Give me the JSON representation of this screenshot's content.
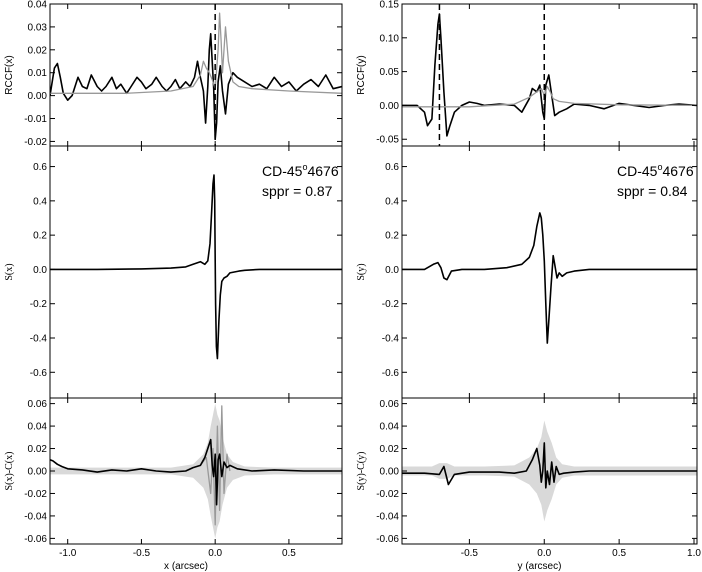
{
  "chart_data": [
    {
      "id": "rccf-x",
      "type": "line",
      "ylabel": "RCCF(x)",
      "xlim": [
        -1.12,
        0.86
      ],
      "ylim": [
        -0.022,
        0.04
      ],
      "yticks": [
        -0.02,
        -0.01,
        0.0,
        0.01,
        0.02,
        0.03,
        0.04
      ],
      "ytick_labels": [
        "-0.02",
        "-0.01",
        "0.00",
        "0.01",
        "0.02",
        "0.03",
        "0.04"
      ],
      "xticks": [
        -1.0,
        -0.5,
        0.0,
        0.5
      ],
      "vlines": [
        0.0
      ],
      "series": [
        {
          "color": "#000000",
          "x": [
            -1.12,
            -1.09,
            -1.07,
            -1.05,
            -1.03,
            -1.0,
            -0.97,
            -0.93,
            -0.9,
            -0.87,
            -0.84,
            -0.8,
            -0.77,
            -0.74,
            -0.7,
            -0.67,
            -0.64,
            -0.6,
            -0.57,
            -0.53,
            -0.5,
            -0.47,
            -0.43,
            -0.4,
            -0.36,
            -0.33,
            -0.3,
            -0.27,
            -0.24,
            -0.2,
            -0.17,
            -0.14,
            -0.12,
            -0.1,
            -0.08,
            -0.065,
            -0.05,
            -0.04,
            -0.03,
            -0.02,
            -0.01,
            0.0,
            0.01,
            0.02,
            0.035,
            0.05,
            0.07,
            0.09,
            0.12,
            0.15,
            0.2,
            0.25,
            0.3,
            0.35,
            0.4,
            0.45,
            0.5,
            0.55,
            0.6,
            0.65,
            0.7,
            0.75,
            0.8,
            0.86
          ],
          "y": [
            0.0,
            0.012,
            0.014,
            0.008,
            0.001,
            -0.002,
            0.0,
            0.008,
            0.004,
            0.003,
            0.009,
            0.004,
            0.002,
            0.004,
            0.008,
            0.003,
            0.005,
            0.001,
            0.004,
            0.008,
            0.006,
            0.003,
            0.005,
            0.008,
            0.004,
            0.002,
            0.004,
            0.007,
            0.003,
            0.006,
            0.004,
            0.008,
            0.015,
            0.008,
            0.002,
            -0.012,
            0.004,
            0.02,
            0.027,
            0.015,
            0.003,
            -0.019,
            -0.012,
            0.006,
            0.013,
            0.002,
            -0.008,
            0.005,
            0.01,
            0.008,
            0.006,
            0.004,
            0.005,
            0.003,
            0.008,
            0.004,
            0.006,
            0.002,
            0.005,
            0.007,
            0.004,
            0.009,
            0.003,
            0.004
          ]
        },
        {
          "color": "#999999",
          "x": [
            -1.12,
            -0.6,
            -0.3,
            -0.15,
            -0.1,
            -0.08,
            -0.06,
            -0.04,
            -0.02,
            0.0,
            0.02,
            0.03,
            0.04,
            0.05,
            0.07,
            0.09,
            0.12,
            0.16,
            0.25,
            0.5,
            0.86
          ],
          "y": [
            0.001,
            0.001,
            0.002,
            0.004,
            0.009,
            0.015,
            0.012,
            0.01,
            0.007,
            0.003,
            0.02,
            0.036,
            0.024,
            0.01,
            0.03,
            0.015,
            0.006,
            0.004,
            0.003,
            0.002,
            0.001
          ]
        }
      ]
    },
    {
      "id": "rccf-y",
      "type": "line",
      "ylabel": "RCCF(y)",
      "xlim": [
        -0.95,
        1.02
      ],
      "ylim": [
        -0.06,
        0.15
      ],
      "yticks": [
        -0.05,
        0.0,
        0.05,
        0.1,
        0.15
      ],
      "ytick_labels": [
        "-0.05",
        "0.00",
        "0.05",
        "0.10",
        "0.15"
      ],
      "xticks": [
        -0.5,
        0.0,
        0.5,
        1.0
      ],
      "vlines": [
        -0.7,
        0.0
      ],
      "series": [
        {
          "color": "#000000",
          "x": [
            -0.95,
            -0.85,
            -0.8,
            -0.78,
            -0.75,
            -0.73,
            -0.71,
            -0.7,
            -0.69,
            -0.67,
            -0.65,
            -0.63,
            -0.6,
            -0.55,
            -0.5,
            -0.45,
            -0.4,
            -0.3,
            -0.2,
            -0.15,
            -0.1,
            -0.08,
            -0.05,
            -0.03,
            -0.01,
            0.0,
            0.01,
            0.03,
            0.05,
            0.07,
            0.1,
            0.15,
            0.2,
            0.3,
            0.4,
            0.5,
            0.6,
            0.7,
            0.8,
            0.9,
            1.02
          ],
          "y": [
            0.0,
            0.0,
            -0.01,
            -0.03,
            -0.02,
            0.06,
            0.12,
            0.135,
            0.1,
            0.02,
            -0.045,
            -0.03,
            -0.01,
            0.0,
            0.005,
            0.003,
            0.0,
            0.002,
            0.0,
            -0.01,
            0.01,
            0.025,
            0.02,
            0.03,
            -0.01,
            -0.02,
            0.03,
            0.045,
            0.015,
            -0.015,
            -0.01,
            -0.005,
            0.002,
            0.0,
            -0.005,
            0.003,
            0.0,
            -0.003,
            0.0,
            0.002,
            0.0
          ]
        },
        {
          "color": "#999999",
          "x": [
            -0.95,
            -0.5,
            -0.2,
            -0.1,
            -0.05,
            -0.02,
            0.0,
            0.02,
            0.04,
            0.06,
            0.1,
            0.2,
            0.5,
            1.02
          ],
          "y": [
            -0.002,
            -0.002,
            0.002,
            0.012,
            0.02,
            0.025,
            0.015,
            0.028,
            0.02,
            0.01,
            0.006,
            0.003,
            0.001,
            0.0
          ]
        }
      ]
    },
    {
      "id": "s-x",
      "type": "line",
      "ylabel": "S(x)",
      "title_star": "CD-45",
      "title_sup": "o",
      "title_num": "4676",
      "sppr": "sppr = 0.87",
      "xlim": [
        -1.12,
        0.86
      ],
      "ylim": [
        -0.75,
        0.72
      ],
      "yticks": [
        -0.6,
        -0.4,
        -0.2,
        0.0,
        0.2,
        0.4,
        0.6
      ],
      "ytick_labels": [
        "-0.6",
        "-0.4",
        "-0.2",
        "0.0",
        "0.2",
        "0.4",
        "0.6"
      ],
      "xticks": [
        -1.0,
        -0.5,
        0.0,
        0.5
      ],
      "series": [
        {
          "color": "#000000",
          "x": [
            -1.12,
            -0.8,
            -0.5,
            -0.3,
            -0.2,
            -0.15,
            -0.1,
            -0.07,
            -0.05,
            -0.035,
            -0.025,
            -0.015,
            -0.008,
            -0.003,
            0.0,
            0.003,
            0.008,
            0.015,
            0.025,
            0.035,
            0.045,
            0.06,
            0.08,
            0.1,
            0.13,
            0.16,
            0.2,
            0.3,
            0.5,
            0.86
          ],
          "y": [
            0.0,
            0.0,
            0.003,
            0.008,
            0.015,
            0.03,
            0.045,
            0.03,
            0.05,
            0.15,
            0.32,
            0.5,
            0.55,
            0.4,
            0.05,
            -0.2,
            -0.45,
            -0.52,
            -0.3,
            -0.15,
            -0.07,
            -0.05,
            -0.04,
            -0.02,
            -0.015,
            -0.01,
            -0.005,
            0.0,
            0.0,
            0.0
          ]
        }
      ]
    },
    {
      "id": "s-y",
      "type": "line",
      "ylabel": "S(y)",
      "title_star": "CD-45",
      "title_sup": "o",
      "title_num": "4676",
      "sppr": "sppr = 0.84",
      "xlim": [
        -0.95,
        1.02
      ],
      "ylim": [
        -0.75,
        0.72
      ],
      "yticks": [
        -0.6,
        -0.4,
        -0.2,
        0.0,
        0.2,
        0.4,
        0.6
      ],
      "ytick_labels": [
        "-0.6",
        "-0.4",
        "-0.2",
        "0.0",
        "0.2",
        "0.4",
        "0.6"
      ],
      "xticks": [
        -0.5,
        0.0,
        0.5,
        1.0
      ],
      "series": [
        {
          "color": "#000000",
          "x": [
            -0.95,
            -0.8,
            -0.74,
            -0.71,
            -0.69,
            -0.67,
            -0.65,
            -0.62,
            -0.55,
            -0.4,
            -0.25,
            -0.15,
            -0.1,
            -0.07,
            -0.05,
            -0.03,
            -0.02,
            -0.01,
            0.0,
            0.01,
            0.02,
            0.03,
            0.045,
            0.06,
            0.07,
            0.085,
            0.1,
            0.12,
            0.15,
            0.2,
            0.3,
            0.5,
            0.7,
            1.02
          ],
          "y": [
            0.0,
            0.0,
            0.03,
            0.04,
            0.01,
            -0.05,
            -0.06,
            -0.01,
            0.0,
            0.0,
            0.01,
            0.03,
            0.07,
            0.14,
            0.25,
            0.33,
            0.3,
            0.2,
            0.05,
            -0.2,
            -0.43,
            -0.3,
            -0.1,
            0.08,
            0.03,
            -0.05,
            -0.02,
            -0.04,
            -0.02,
            -0.01,
            0.0,
            0.0,
            0.0,
            0.0
          ]
        }
      ]
    },
    {
      "id": "diff-x",
      "type": "line",
      "ylabel": "S(x)-C(x)",
      "xlabel": "x (arcsec)",
      "xlim": [
        -1.12,
        0.86
      ],
      "ylim": [
        -0.065,
        0.065
      ],
      "yticks": [
        -0.06,
        -0.04,
        -0.02,
        0.0,
        0.02,
        0.04,
        0.06
      ],
      "ytick_labels": [
        "-0.06",
        "-0.04",
        "-0.02",
        "0.00",
        "0.02",
        "0.04",
        "0.06"
      ],
      "xticks": [
        -1.0,
        -0.5,
        0.0,
        0.5
      ],
      "xtick_labels": [
        "-1.0",
        "-0.5",
        "0.0",
        "0.5"
      ],
      "band": {
        "x": [
          -1.12,
          -0.3,
          -0.15,
          -0.08,
          -0.05,
          -0.03,
          -0.015,
          0.0,
          0.015,
          0.03,
          0.05,
          0.08,
          0.12,
          0.2,
          0.4,
          0.86
        ],
        "halfwidth": [
          0.003,
          0.003,
          0.006,
          0.015,
          0.025,
          0.04,
          0.05,
          0.06,
          0.05,
          0.045,
          0.03,
          0.015,
          0.008,
          0.004,
          0.003,
          0.003
        ]
      },
      "series": [
        {
          "color": "#999999",
          "x": [
            -0.1,
            -0.06,
            -0.03,
            -0.015,
            0.0,
            0.015,
            0.03,
            0.045,
            0.06,
            0.08,
            0.1
          ],
          "y": [
            0.005,
            0.012,
            -0.02,
            0.02,
            -0.048,
            0.04,
            -0.035,
            0.058,
            -0.02,
            0.015,
            0.0
          ]
        },
        {
          "color": "#000000",
          "x": [
            -1.12,
            -1.1,
            -1.07,
            -1.04,
            -1.0,
            -0.9,
            -0.8,
            -0.7,
            -0.6,
            -0.5,
            -0.4,
            -0.3,
            -0.2,
            -0.15,
            -0.1,
            -0.07,
            -0.05,
            -0.03,
            -0.02,
            -0.01,
            0.0,
            0.01,
            0.02,
            0.03,
            0.045,
            0.06,
            0.08,
            0.1,
            0.15,
            0.25,
            0.4,
            0.6,
            0.86
          ],
          "y": [
            0.01,
            0.009,
            0.006,
            0.004,
            0.002,
            0.001,
            -0.001,
            0.001,
            0.0,
            0.002,
            0.0,
            -0.001,
            0.0,
            0.003,
            0.005,
            0.012,
            0.02,
            0.028,
            0.005,
            -0.005,
            0.015,
            -0.03,
            0.01,
            0.015,
            -0.005,
            0.008,
            0.003,
            0.005,
            0.002,
            0.0,
            0.001,
            0.0,
            0.0
          ]
        }
      ]
    },
    {
      "id": "diff-y",
      "type": "line",
      "ylabel": "S(y)-C(y)",
      "xlabel": "y (arcsec)",
      "xlim": [
        -0.95,
        1.02
      ],
      "ylim": [
        -0.065,
        0.065
      ],
      "yticks": [
        -0.06,
        -0.04,
        -0.02,
        0.0,
        0.02,
        0.04,
        0.06
      ],
      "ytick_labels": [
        "-0.06",
        "-0.04",
        "-0.02",
        "0.00",
        "0.02",
        "0.04",
        "0.06"
      ],
      "xticks": [
        -0.5,
        0.0,
        0.5,
        1.0
      ],
      "xtick_labels": [
        "-0.5",
        "0.0",
        "0.5",
        "1.0"
      ],
      "band": {
        "x": [
          -0.95,
          -0.75,
          -0.7,
          -0.65,
          -0.6,
          -0.4,
          -0.2,
          -0.1,
          -0.05,
          -0.02,
          0.0,
          0.02,
          0.05,
          0.08,
          0.12,
          0.2,
          0.4,
          1.02
        ],
        "halfwidth": [
          0.004,
          0.004,
          0.007,
          0.007,
          0.004,
          0.004,
          0.005,
          0.012,
          0.02,
          0.03,
          0.045,
          0.035,
          0.025,
          0.012,
          0.006,
          0.004,
          0.004,
          0.004
        ]
      },
      "series": [
        {
          "color": "#000000",
          "x": [
            -0.95,
            -0.8,
            -0.7,
            -0.67,
            -0.64,
            -0.6,
            -0.5,
            -0.3,
            -0.2,
            -0.12,
            -0.08,
            -0.05,
            -0.03,
            -0.02,
            -0.01,
            0.0,
            0.01,
            0.02,
            0.035,
            0.05,
            0.065,
            0.08,
            0.1,
            0.13,
            0.2,
            0.3,
            0.5,
            0.7,
            1.02
          ],
          "y": [
            -0.002,
            -0.002,
            -0.003,
            0.004,
            -0.012,
            -0.003,
            -0.001,
            -0.001,
            -0.002,
            0.0,
            0.01,
            0.02,
            0.005,
            -0.01,
            0.0,
            0.025,
            -0.015,
            0.0,
            -0.012,
            0.008,
            -0.01,
            0.004,
            -0.003,
            -0.002,
            -0.001,
            0.0,
            0.0,
            0.0,
            0.0
          ]
        }
      ]
    }
  ]
}
